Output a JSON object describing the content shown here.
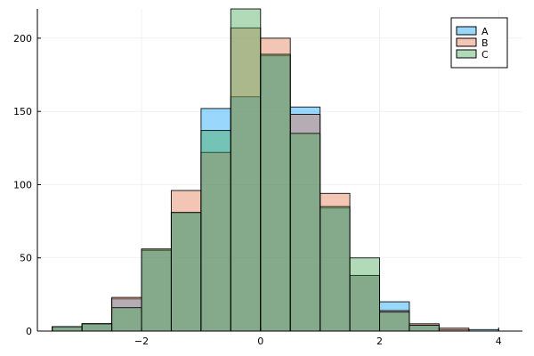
{
  "chart_data": {
    "type": "bar",
    "title": "",
    "xlabel": "",
    "ylabel": "",
    "xlim": [
      -3.75,
      4.4
    ],
    "ylim": [
      0,
      220
    ],
    "grid": true,
    "legend_position": "top-right",
    "x_ticks": [
      -2,
      0,
      2,
      4
    ],
    "x_tick_labels": [
      "−2",
      "0",
      "2",
      "4"
    ],
    "y_ticks": [
      0,
      50,
      100,
      150,
      200
    ],
    "y_tick_labels": [
      "0",
      "50",
      "100",
      "150",
      "200"
    ],
    "bin_edges": [
      -3.5,
      -3.0,
      -2.5,
      -2.0,
      -1.5,
      -1.0,
      -0.5,
      0.0,
      0.5,
      1.0,
      1.5,
      2.0,
      2.5,
      3.0,
      3.5,
      4.0
    ],
    "series": [
      {
        "name": "A",
        "color": "#009af9",
        "values": [
          3,
          5,
          22,
          55,
          81,
          152,
          160,
          188,
          153,
          84,
          38,
          20,
          4,
          1,
          1
        ]
      },
      {
        "name": "B",
        "color": "#e26f46",
        "values": [
          3,
          5,
          23,
          56,
          96,
          122,
          207,
          200,
          148,
          94,
          38,
          14,
          5,
          2,
          0
        ]
      },
      {
        "name": "C",
        "color": "#3da44d",
        "values": [
          3,
          5,
          16,
          56,
          81,
          137,
          220,
          189,
          135,
          85,
          50,
          13,
          4,
          0,
          0
        ]
      }
    ]
  }
}
